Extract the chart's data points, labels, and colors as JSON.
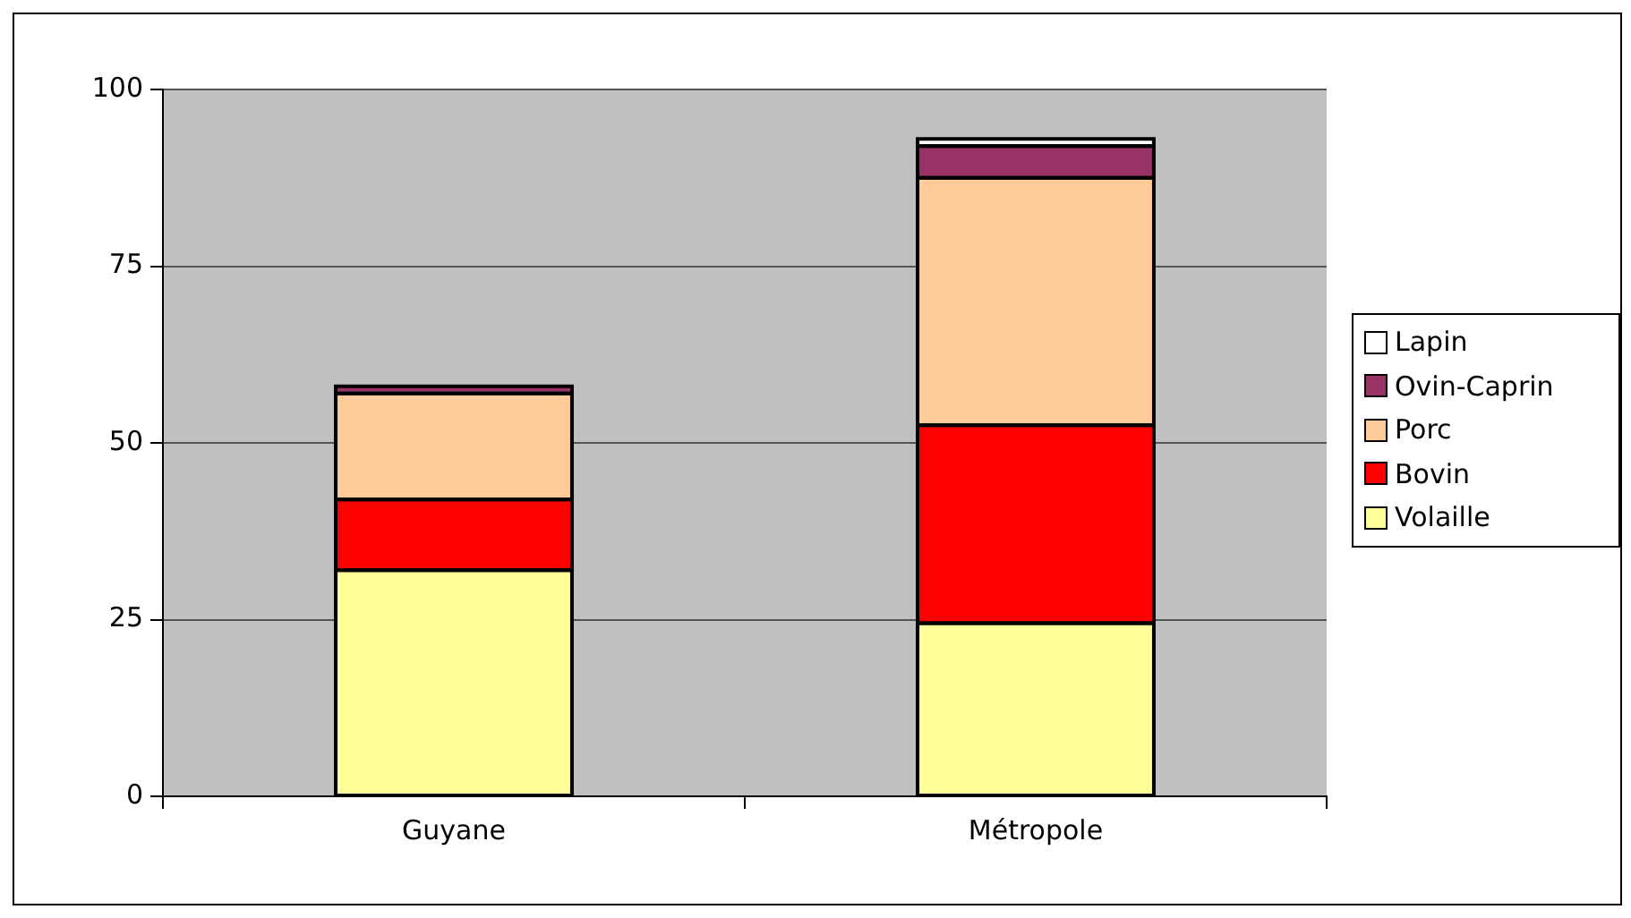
{
  "chart_data": {
    "type": "bar",
    "stacked": true,
    "categories": [
      "Guyane",
      "Métropole"
    ],
    "series": [
      {
        "name": "Volaille",
        "color": "#ffff99",
        "values": [
          32,
          24.5
        ]
      },
      {
        "name": "Bovin",
        "color": "#ff0000",
        "values": [
          10,
          28
        ]
      },
      {
        "name": "Porc",
        "color": "#ffcc99",
        "values": [
          15,
          35
        ]
      },
      {
        "name": "Ovin-Caprin",
        "color": "#993366",
        "values": [
          1,
          4.5
        ]
      },
      {
        "name": "Lapin",
        "color": "#ffffff",
        "values": [
          0,
          1
        ]
      }
    ],
    "ylim": [
      0,
      100
    ],
    "yticks": [
      0,
      25,
      50,
      75,
      100
    ],
    "grid": "y",
    "legend": "right"
  }
}
